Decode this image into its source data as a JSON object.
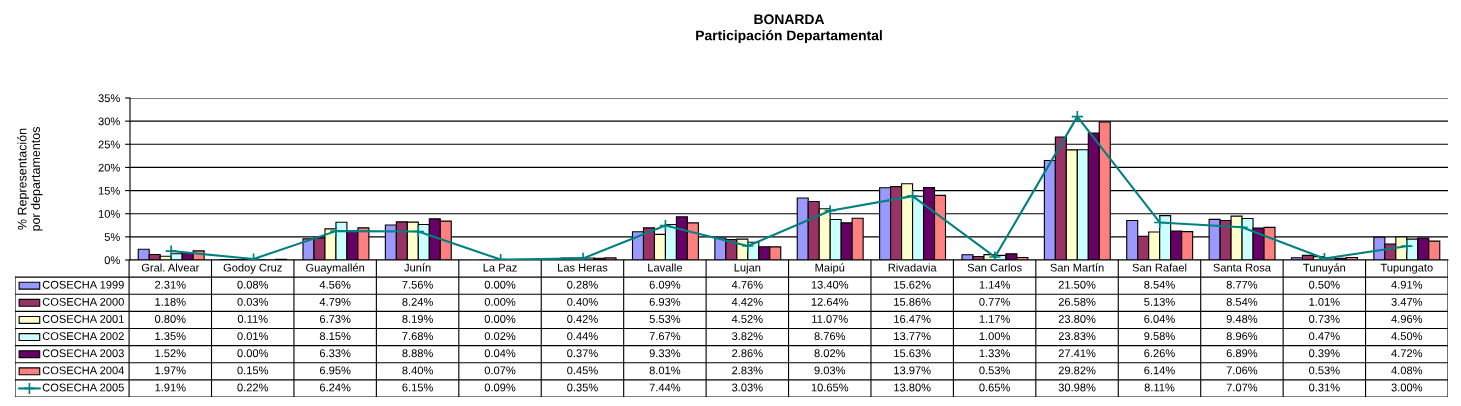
{
  "chart_data": {
    "type": "bar",
    "title": "BONARDA",
    "subtitle": "Participación Departamental",
    "ylabel": "% Representación\npor departamentos",
    "categories": [
      "Gral. Alvear",
      "Godoy Cruz",
      "Guaymallén",
      "Junín",
      "La Paz",
      "Las Heras",
      "Lavalle",
      "Lujan",
      "Maipú",
      "Rivadavia",
      "San Carlos",
      "San Martín",
      "San Rafael",
      "Santa Rosa",
      "Tunuyán",
      "Tupungato"
    ],
    "series": [
      {
        "name": "COSECHA 1999",
        "color": "#9999ff",
        "values": [
          2.31,
          0.08,
          4.56,
          7.56,
          0.0,
          0.28,
          6.09,
          4.76,
          13.4,
          15.62,
          1.14,
          21.5,
          8.54,
          8.77,
          0.5,
          4.91
        ],
        "value_labels": [
          "2.31%",
          "0.08%",
          "4.56%",
          "7.56%",
          "0.00%",
          "0.28%",
          "6.09%",
          "4.76%",
          "13.40%",
          "15.62%",
          "1.14%",
          "21.50%",
          "8.54%",
          "8.77%",
          "0.50%",
          "4.91%"
        ]
      },
      {
        "name": "COSECHA 2000",
        "color": "#993366",
        "values": [
          1.18,
          0.03,
          4.79,
          8.24,
          0.0,
          0.4,
          6.93,
          4.42,
          12.64,
          15.86,
          0.77,
          26.58,
          5.13,
          8.54,
          1.01,
          3.47
        ],
        "value_labels": [
          "1.18%",
          "0.03%",
          "4.79%",
          "8.24%",
          "0.00%",
          "0.40%",
          "6.93%",
          "4.42%",
          "12.64%",
          "15.86%",
          "0.77%",
          "26.58%",
          "5.13%",
          "8.54%",
          "1.01%",
          "3.47%"
        ]
      },
      {
        "name": "COSECHA 2001",
        "color": "#ffffcc",
        "values": [
          0.8,
          0.11,
          6.73,
          8.19,
          0.0,
          0.42,
          5.53,
          4.52,
          11.07,
          16.47,
          1.17,
          23.8,
          6.04,
          9.48,
          0.73,
          4.96
        ],
        "value_labels": [
          "0.80%",
          "0.11%",
          "6.73%",
          "8.19%",
          "0.00%",
          "0.42%",
          "5.53%",
          "4.52%",
          "11.07%",
          "16.47%",
          "1.17%",
          "23.80%",
          "6.04%",
          "9.48%",
          "0.73%",
          "4.96%"
        ]
      },
      {
        "name": "COSECHA 2002",
        "color": "#ccffff",
        "values": [
          1.35,
          0.01,
          8.15,
          7.68,
          0.02,
          0.44,
          7.67,
          3.82,
          8.76,
          13.77,
          1.0,
          23.83,
          9.58,
          8.96,
          0.47,
          4.5
        ],
        "value_labels": [
          "1.35%",
          "0.01%",
          "8.15%",
          "7.68%",
          "0.02%",
          "0.44%",
          "7.67%",
          "3.82%",
          "8.76%",
          "13.77%",
          "1.00%",
          "23.83%",
          "9.58%",
          "8.96%",
          "0.47%",
          "4.50%"
        ]
      },
      {
        "name": "COSECHA 2003",
        "color": "#660066",
        "values": [
          1.52,
          0.0,
          6.33,
          8.88,
          0.04,
          0.37,
          9.33,
          2.86,
          8.02,
          15.63,
          1.33,
          27.41,
          6.26,
          6.89,
          0.39,
          4.72
        ],
        "value_labels": [
          "1.52%",
          "0.00%",
          "6.33%",
          "8.88%",
          "0.04%",
          "0.37%",
          "9.33%",
          "2.86%",
          "8.02%",
          "15.63%",
          "1.33%",
          "27.41%",
          "6.26%",
          "6.89%",
          "0.39%",
          "4.72%"
        ]
      },
      {
        "name": "COSECHA 2004",
        "color": "#ff8080",
        "values": [
          1.97,
          0.15,
          6.95,
          8.4,
          0.07,
          0.45,
          8.01,
          2.83,
          9.03,
          13.97,
          0.53,
          29.82,
          6.14,
          7.06,
          0.53,
          4.08
        ],
        "value_labels": [
          "1.97%",
          "0.15%",
          "6.95%",
          "8.40%",
          "0.07%",
          "0.45%",
          "8.01%",
          "2.83%",
          "9.03%",
          "13.97%",
          "0.53%",
          "29.82%",
          "6.14%",
          "7.06%",
          "0.53%",
          "4.08%"
        ]
      },
      {
        "name": "COSECHA 2005",
        "type": "line",
        "color": "#008080",
        "values": [
          1.91,
          0.22,
          6.24,
          6.15,
          0.09,
          0.35,
          7.44,
          3.03,
          10.65,
          13.8,
          0.65,
          30.98,
          8.11,
          7.07,
          0.31,
          3.0
        ],
        "value_labels": [
          "1.91%",
          "0.22%",
          "6.24%",
          "6.15%",
          "0.09%",
          "0.35%",
          "7.44%",
          "3.03%",
          "10.65%",
          "13.80%",
          "0.65%",
          "30.98%",
          "8.11%",
          "7.07%",
          "0.31%",
          "3.00%"
        ]
      }
    ],
    "ylim": [
      0,
      35
    ],
    "yticks": [
      {
        "value": 0,
        "label": "0%"
      },
      {
        "value": 5,
        "label": "5%"
      },
      {
        "value": 10,
        "label": "10%"
      },
      {
        "value": 15,
        "label": "15%"
      },
      {
        "value": 20,
        "label": "20%"
      },
      {
        "value": 25,
        "label": "25%"
      },
      {
        "value": 30,
        "label": "30%"
      },
      {
        "value": 35,
        "label": "35%"
      }
    ],
    "grid": "y",
    "legend": "bottom",
    "marker": "cross",
    "line_style": "solid"
  }
}
